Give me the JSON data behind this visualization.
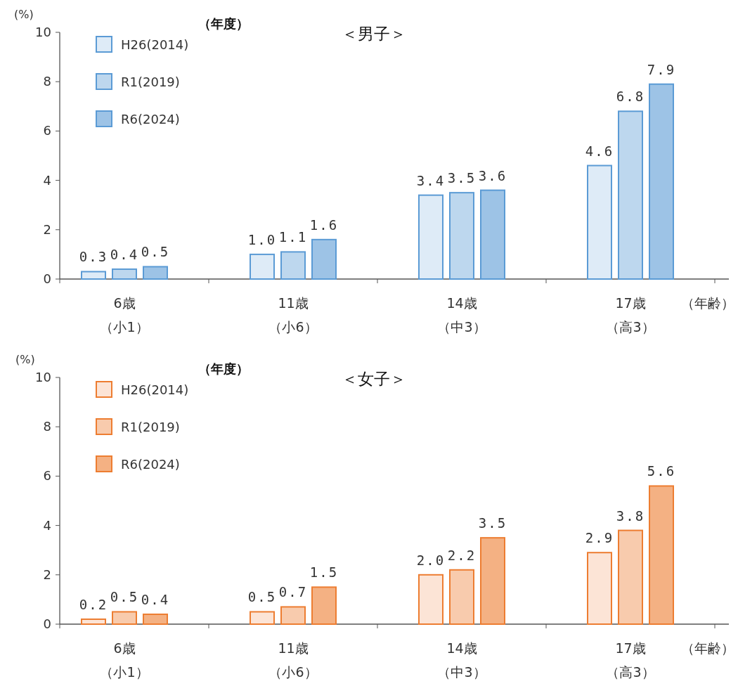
{
  "chart_data": [
    {
      "type": "bar",
      "title": "＜男子＞",
      "xlabel": "（年齢）",
      "ylabel": "(%)",
      "legend_title": "（年度）",
      "categories": [
        "6歳（小1）",
        "11歳（小6）",
        "14歳（中3）",
        "17歳（高3）"
      ],
      "series": [
        {
          "name": "H26(2014)",
          "color": "#deebf7",
          "values": [
            0.3,
            1.0,
            3.4,
            4.6
          ],
          "value_labels": [
            "0.3",
            "1.0",
            "3.4",
            "4.6"
          ]
        },
        {
          "name": "R1(2019)",
          "color": "#bdd7ee",
          "values": [
            0.4,
            1.1,
            3.5,
            6.8
          ],
          "value_labels": [
            "0.4",
            "1.1",
            "3.5",
            "6.8"
          ]
        },
        {
          "name": "R6(2024)",
          "color": "#9dc3e6",
          "values": [
            0.5,
            1.6,
            3.6,
            7.9
          ],
          "value_labels": [
            "0.5",
            "1.6",
            "3.6",
            "7.9"
          ]
        }
      ],
      "ylim": [
        0,
        10
      ],
      "yticks": [
        0,
        2,
        4,
        6,
        8,
        10
      ],
      "legend": "top left"
    },
    {
      "type": "bar",
      "title": "＜女子＞",
      "xlabel": "（年齢）",
      "ylabel": "(%)",
      "legend_title": "（年度）",
      "categories": [
        "6歳（小1）",
        "11歳（小6）",
        "14歳（中3）",
        "17歳（高3）"
      ],
      "series": [
        {
          "name": "H26(2014)",
          "color": "#fce4d6",
          "values": [
            0.2,
            0.5,
            2.0,
            2.9
          ],
          "value_labels": [
            "0.2",
            "0.5",
            "2.0",
            "2.9"
          ]
        },
        {
          "name": "R1(2019)",
          "color": "#f8cbad",
          "values": [
            0.5,
            0.7,
            2.2,
            3.8
          ],
          "value_labels": [
            "0.5",
            "0.7",
            "2.2",
            "3.8"
          ]
        },
        {
          "name": "R6(2024)",
          "color": "#f4b183",
          "values": [
            0.4,
            1.5,
            3.5,
            5.6
          ],
          "value_labels": [
            "0.4",
            "1.5",
            "3.5",
            "5.6"
          ]
        }
      ],
      "ylim": [
        0,
        10
      ],
      "yticks": [
        0,
        2,
        4,
        6,
        8,
        10
      ],
      "legend": "top left"
    }
  ]
}
